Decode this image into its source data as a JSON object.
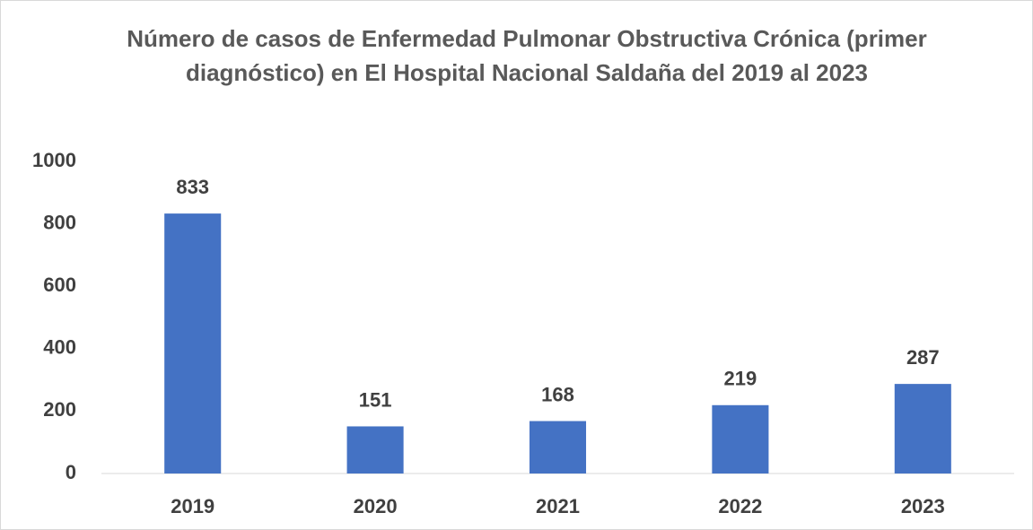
{
  "chart_data": {
    "type": "bar",
    "title": "Número de casos de Enfermedad Pulmonar Obstructiva Crónica (primer diagnóstico) en El Hospital Nacional Saldaña del 2019 al 2023",
    "categories": [
      "2019",
      "2020",
      "2021",
      "2022",
      "2023"
    ],
    "values": [
      833,
      151,
      168,
      219,
      287
    ],
    "color": "#4472c4",
    "ylim": [
      0,
      1000
    ],
    "yticks": [
      0,
      200,
      400,
      600,
      800,
      1000
    ],
    "grid": false
  }
}
